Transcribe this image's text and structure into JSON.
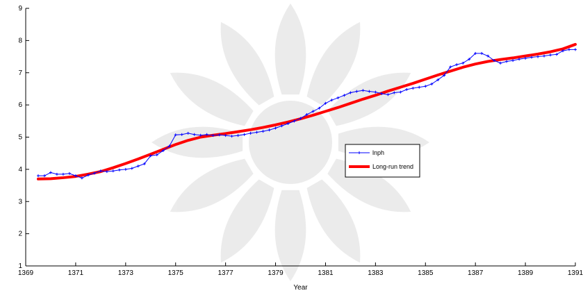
{
  "chart_data": {
    "type": "line",
    "title": "",
    "xlabel": "Year",
    "ylabel": "",
    "xlim": [
      1369,
      1391
    ],
    "ylim": [
      1,
      9
    ],
    "x_ticks": [
      1369,
      1371,
      1373,
      1375,
      1377,
      1379,
      1381,
      1383,
      1385,
      1387,
      1389,
      1391
    ],
    "y_ticks": [
      1,
      2,
      3,
      4,
      5,
      6,
      7,
      8,
      9
    ],
    "grid": false,
    "legend_position": "center-right",
    "series": [
      {
        "name": "lnph",
        "color": "#0000ff",
        "marker": "point",
        "x": [
          1369.5,
          1369.75,
          1370.0,
          1370.25,
          1370.5,
          1370.75,
          1371.0,
          1371.25,
          1371.5,
          1371.75,
          1372.0,
          1372.25,
          1372.5,
          1372.75,
          1373.0,
          1373.25,
          1373.5,
          1373.75,
          1374.0,
          1374.25,
          1374.5,
          1374.75,
          1375.0,
          1375.25,
          1375.5,
          1375.75,
          1376.0,
          1376.25,
          1376.5,
          1376.75,
          1377.0,
          1377.25,
          1377.5,
          1377.75,
          1378.0,
          1378.25,
          1378.5,
          1378.75,
          1379.0,
          1379.25,
          1379.5,
          1379.75,
          1380.0,
          1380.25,
          1380.5,
          1380.75,
          1381.0,
          1381.25,
          1381.5,
          1381.75,
          1382.0,
          1382.25,
          1382.5,
          1382.75,
          1383.0,
          1383.25,
          1383.5,
          1383.75,
          1384.0,
          1384.25,
          1384.5,
          1384.75,
          1385.0,
          1385.25,
          1385.5,
          1385.75,
          1386.0,
          1386.25,
          1386.5,
          1386.75,
          1387.0,
          1387.25,
          1387.5,
          1387.75,
          1388.0,
          1388.25,
          1388.5,
          1388.75,
          1389.0,
          1389.25,
          1389.5,
          1389.75,
          1390.0,
          1390.25,
          1390.5,
          1390.75,
          1391.0
        ],
        "y": [
          3.8,
          3.8,
          3.9,
          3.85,
          3.85,
          3.87,
          3.8,
          3.73,
          3.82,
          3.88,
          3.95,
          3.93,
          3.95,
          3.98,
          4.0,
          4.03,
          4.1,
          4.17,
          4.42,
          4.45,
          4.58,
          4.72,
          5.07,
          5.08,
          5.12,
          5.08,
          5.06,
          5.08,
          5.05,
          5.07,
          5.05,
          5.03,
          5.05,
          5.08,
          5.12,
          5.15,
          5.18,
          5.22,
          5.28,
          5.35,
          5.42,
          5.5,
          5.58,
          5.7,
          5.8,
          5.9,
          6.05,
          6.15,
          6.22,
          6.3,
          6.38,
          6.42,
          6.45,
          6.42,
          6.4,
          6.35,
          6.32,
          6.38,
          6.4,
          6.48,
          6.52,
          6.55,
          6.58,
          6.65,
          6.78,
          6.92,
          7.18,
          7.25,
          7.3,
          7.42,
          7.6,
          7.6,
          7.52,
          7.38,
          7.3,
          7.35,
          7.38,
          7.42,
          7.45,
          7.48,
          7.5,
          7.52,
          7.55,
          7.57,
          7.68,
          7.72,
          7.72
        ]
      },
      {
        "name": "Long-run trend",
        "color": "#ff0000",
        "marker": "none",
        "x": [
          1369.5,
          1370.0,
          1370.5,
          1371.0,
          1371.5,
          1372.0,
          1372.5,
          1373.0,
          1373.5,
          1374.0,
          1374.5,
          1375.0,
          1375.5,
          1376.0,
          1376.5,
          1377.0,
          1377.5,
          1378.0,
          1378.5,
          1379.0,
          1379.5,
          1380.0,
          1380.5,
          1381.0,
          1381.5,
          1382.0,
          1382.5,
          1383.0,
          1383.5,
          1384.0,
          1384.5,
          1385.0,
          1385.5,
          1386.0,
          1386.5,
          1387.0,
          1387.5,
          1388.0,
          1388.5,
          1389.0,
          1389.5,
          1390.0,
          1390.5,
          1391.0
        ],
        "y": [
          3.7,
          3.71,
          3.74,
          3.78,
          3.85,
          3.93,
          4.05,
          4.18,
          4.32,
          4.47,
          4.62,
          4.77,
          4.9,
          5.0,
          5.06,
          5.11,
          5.17,
          5.23,
          5.3,
          5.38,
          5.47,
          5.57,
          5.68,
          5.8,
          5.92,
          6.05,
          6.18,
          6.3,
          6.43,
          6.55,
          6.67,
          6.8,
          6.93,
          7.05,
          7.17,
          7.27,
          7.35,
          7.41,
          7.46,
          7.52,
          7.58,
          7.65,
          7.74,
          7.88
        ]
      }
    ]
  }
}
